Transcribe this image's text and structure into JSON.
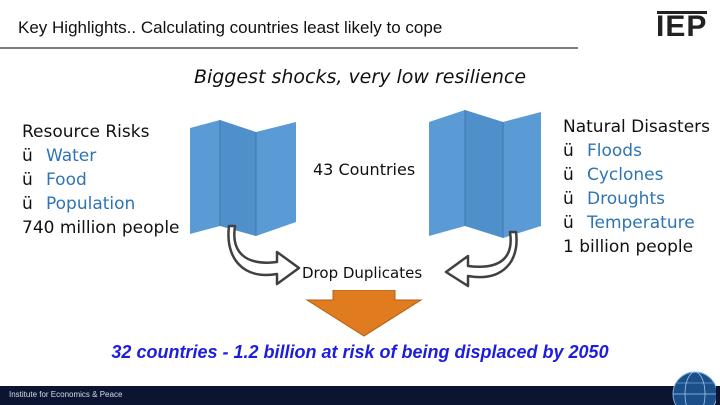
{
  "header": {
    "title": "Key Highlights.. Calculating countries least likely to cope",
    "logo": "IEP"
  },
  "subtitle": "Biggest shocks, very low resilience",
  "resource_risks": {
    "heading": "Resource Risks",
    "items": [
      "Water",
      "Food",
      "Population"
    ],
    "total": "740 million people"
  },
  "natural_disasters": {
    "heading": "Natural Disasters",
    "items": [
      "Floods",
      "Cyclones",
      "Droughts",
      "Temperature"
    ],
    "total": "1 billion people"
  },
  "center_label": "43 Countries",
  "drop_label": "Drop Duplicates",
  "check_symbol": "ü",
  "conclusion": "32 countries - 1.2 billion at risk of being displaced by 2050",
  "footer": {
    "org": "Institute for Economics & Peace"
  },
  "colors": {
    "map_blue": "#5b9bd5",
    "arrow_orange": "#e07b20",
    "conclusion_blue": "#1d1de0",
    "footer_navy": "#0b1531"
  },
  "icons": [
    "folded-map-icon",
    "curved-arrow-icon",
    "down-arrow-icon",
    "globe-icon"
  ]
}
